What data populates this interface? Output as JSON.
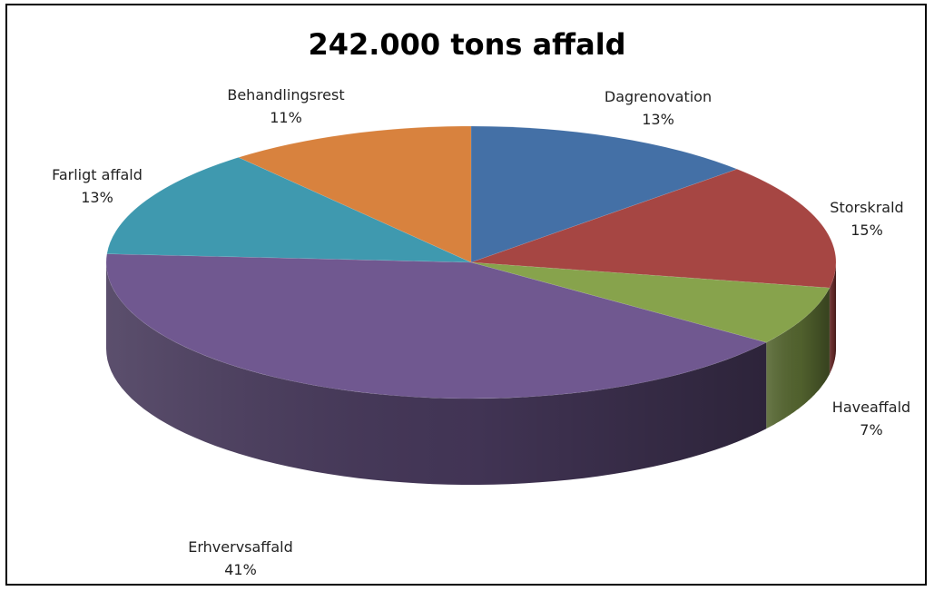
{
  "chart_data": {
    "type": "pie",
    "title": "242.000 tons affald",
    "slices": [
      {
        "label": "Dagrenovation",
        "percent_label": "13%",
        "value": 13,
        "color": "#4470A6"
      },
      {
        "label": "Storskrald",
        "percent_label": "15%",
        "value": 15,
        "color": "#A64643"
      },
      {
        "label": "Haveaffald",
        "percent_label": "7%",
        "value": 7,
        "color": "#87A34C"
      },
      {
        "label": "Erhvervsaffald",
        "percent_label": "41%",
        "value": 41,
        "color": "#705890"
      },
      {
        "label": "Farligt affald",
        "percent_label": "13%",
        "value": 13,
        "color": "#3F99AF"
      },
      {
        "label": "Behandlingsrest",
        "percent_label": "11%",
        "value": 11,
        "color": "#D8823E"
      }
    ],
    "legend": "none",
    "style": "3D pie"
  }
}
